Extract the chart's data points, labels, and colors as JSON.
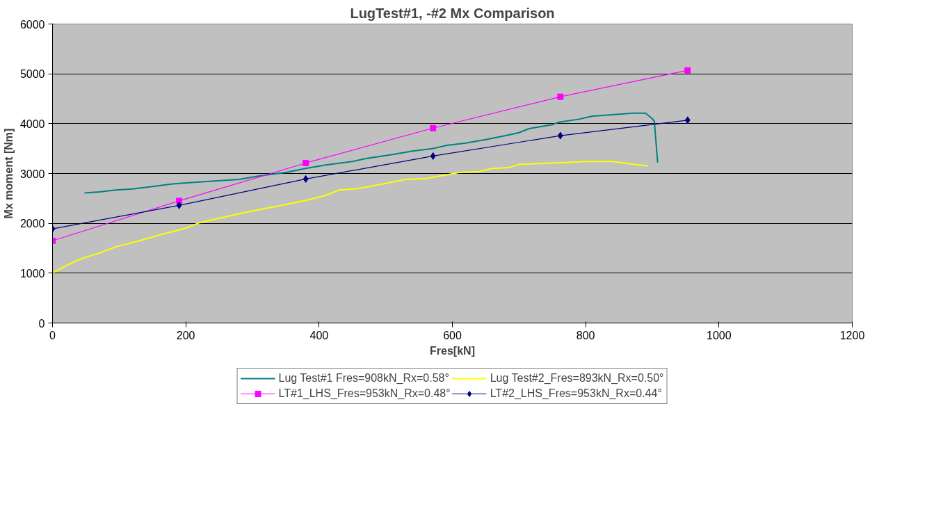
{
  "chart_data": {
    "type": "line",
    "title": "LugTest#1, -#2 Mx Comparison",
    "xlabel": "Fres[kN]",
    "ylabel": "Mx moment [Nm]",
    "xlim": [
      0,
      1200
    ],
    "xticks": [
      0,
      200,
      400,
      600,
      800,
      1000,
      1200
    ],
    "ylim": [
      0,
      6000
    ],
    "yticks": [
      0,
      1000,
      2000,
      3000,
      4000,
      5000,
      6000
    ],
    "grid": "y",
    "legend": "bottom",
    "series": [
      {
        "name": "Lug Test#1 Fres=908kN_Rx=0.58°",
        "color": "#008080",
        "marker": "none",
        "x": [
          48,
          70,
          95,
          120,
          150,
          180,
          220,
          280,
          310,
          350,
          380,
          410,
          450,
          470,
          510,
          540,
          570,
          590,
          620,
          650,
          680,
          700,
          715,
          750,
          760,
          790,
          810,
          830,
          850,
          870,
          890,
          900,
          903,
          908
        ],
        "values": [
          2610,
          2630,
          2670,
          2690,
          2740,
          2790,
          2830,
          2880,
          2950,
          3020,
          3100,
          3170,
          3240,
          3300,
          3380,
          3450,
          3500,
          3560,
          3610,
          3680,
          3760,
          3820,
          3900,
          3980,
          4030,
          4090,
          4150,
          4170,
          4190,
          4210,
          4210,
          4100,
          4050,
          3220
        ]
      },
      {
        "name": "Lug Test#2_Fres=893kN_Rx=0.50°",
        "color": "#ffff00",
        "marker": "none",
        "x": [
          0,
          20,
          45,
          70,
          95,
          130,
          170,
          200,
          220,
          260,
          300,
          340,
          380,
          410,
          430,
          460,
          500,
          530,
          560,
          590,
          610,
          640,
          660,
          685,
          700,
          730,
          770,
          800,
          840,
          870,
          893
        ],
        "values": [
          1000,
          1150,
          1300,
          1400,
          1530,
          1650,
          1800,
          1900,
          2010,
          2130,
          2250,
          2350,
          2460,
          2560,
          2670,
          2700,
          2800,
          2880,
          2900,
          2970,
          3020,
          3040,
          3100,
          3120,
          3180,
          3200,
          3220,
          3240,
          3240,
          3190,
          3150
        ]
      },
      {
        "name": "LT#1_LHS_Fres=953kN_Rx=0.48°",
        "color": "#ff00ff",
        "marker": "square",
        "x": [
          0,
          190,
          380,
          571,
          762,
          953
        ],
        "values": [
          1650,
          2450,
          3210,
          3910,
          4540,
          5070
        ]
      },
      {
        "name": "LT#2_LHS_Fres=953kN_Rx=0.44°",
        "color": "#000080",
        "marker": "diamond",
        "x": [
          0,
          190,
          380,
          571,
          762,
          953
        ],
        "values": [
          1890,
          2360,
          2890,
          3350,
          3760,
          4070
        ]
      }
    ]
  }
}
